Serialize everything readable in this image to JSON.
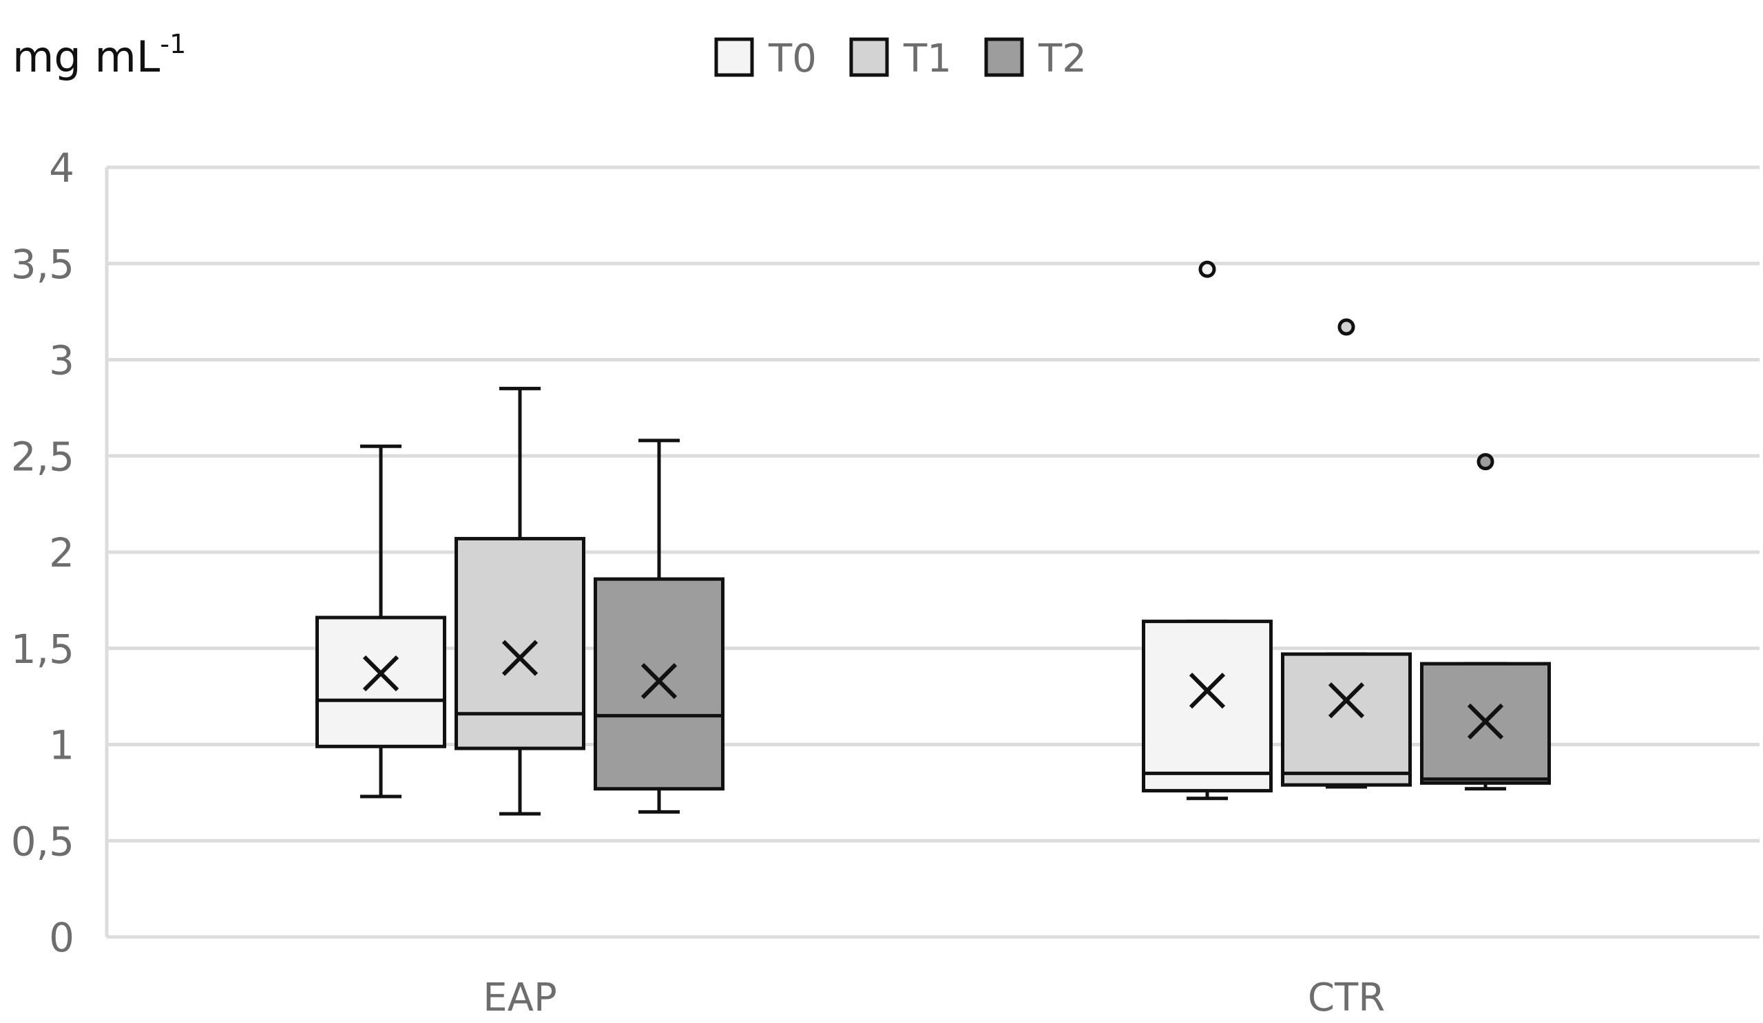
{
  "chart_data": {
    "type": "boxplot",
    "unit_label": "mg mL",
    "unit_exponent": "-1",
    "categories": [
      "EAP",
      "CTR"
    ],
    "ylim": [
      0,
      4
    ],
    "yticks": [
      0,
      0.5,
      1,
      1.5,
      2,
      2.5,
      3,
      3.5,
      4
    ],
    "ytick_labels": [
      "0",
      "0,5",
      "1",
      "1,5",
      "2",
      "2,5",
      "3",
      "3,5",
      "4"
    ],
    "grid": true,
    "legend_position": "top-center",
    "series": [
      {
        "name": "T0",
        "color": "#f4f4f4"
      },
      {
        "name": "T1",
        "color": "#d3d3d3"
      },
      {
        "name": "T2",
        "color": "#9d9d9d"
      }
    ],
    "boxes": [
      {
        "category": "EAP",
        "series": "T0",
        "whisker_low": 0.73,
        "q1": 0.99,
        "median": 1.23,
        "q3": 1.66,
        "whisker_high": 2.55,
        "mean": 1.37,
        "outliers": []
      },
      {
        "category": "EAP",
        "series": "T1",
        "whisker_low": 0.64,
        "q1": 0.98,
        "median": 1.16,
        "q3": 2.07,
        "whisker_high": 2.85,
        "mean": 1.45,
        "outliers": []
      },
      {
        "category": "EAP",
        "series": "T2",
        "whisker_low": 0.65,
        "q1": 0.77,
        "median": 1.15,
        "q3": 1.86,
        "whisker_high": 2.58,
        "mean": 1.33,
        "outliers": []
      },
      {
        "category": "CTR",
        "series": "T0",
        "whisker_low": 0.72,
        "q1": 0.76,
        "median": 0.85,
        "q3": 1.64,
        "whisker_high": 1.64,
        "mean": 1.28,
        "outliers": [
          3.47
        ]
      },
      {
        "category": "CTR",
        "series": "T1",
        "whisker_low": 0.78,
        "q1": 0.79,
        "median": 0.85,
        "q3": 1.47,
        "whisker_high": 1.47,
        "mean": 1.23,
        "outliers": [
          3.17
        ]
      },
      {
        "category": "CTR",
        "series": "T2",
        "whisker_low": 0.77,
        "q1": 0.8,
        "median": 0.82,
        "q3": 1.42,
        "whisker_high": 1.42,
        "mean": 1.12,
        "outliers": [
          2.47
        ]
      }
    ]
  }
}
